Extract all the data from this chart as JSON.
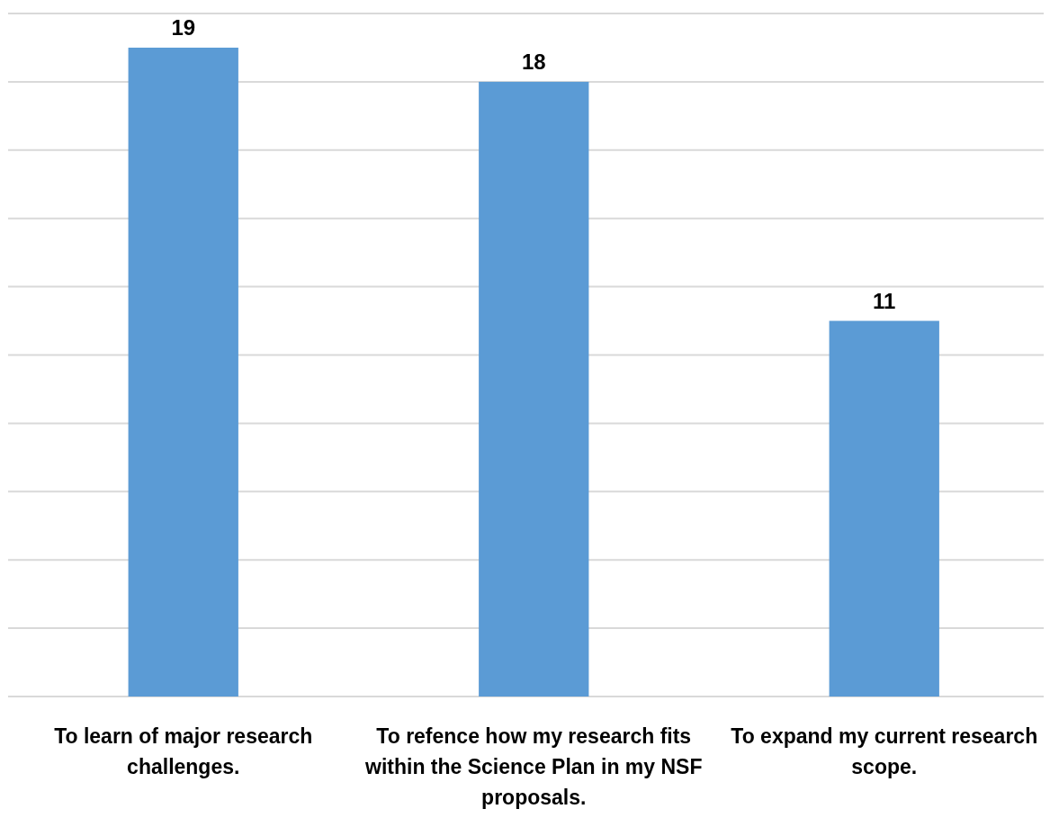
{
  "chart_data": {
    "type": "bar",
    "categories": [
      "To learn of major research challenges.",
      "To refence how my research fits within the Science Plan in my NSF proposals.",
      "To expand my current research scope."
    ],
    "values": [
      19,
      18,
      11
    ],
    "color": "#5b9bd5",
    "ylim": [
      0,
      20
    ],
    "yticks": [
      {
        "value": 0,
        "label": null
      },
      {
        "value": 2,
        "label": null
      },
      {
        "value": 4,
        "label": null
      },
      {
        "value": 6,
        "label": null
      },
      {
        "value": 8,
        "label": null
      },
      {
        "value": 10,
        "label": null
      },
      {
        "value": 12,
        "label": null
      },
      {
        "value": 14,
        "label": null
      },
      {
        "value": 16,
        "label": null
      },
      {
        "value": 18,
        "label": null
      },
      {
        "value": 20,
        "label": null
      }
    ],
    "tick_labels": "x",
    "grid": "y",
    "data_labels": true
  }
}
